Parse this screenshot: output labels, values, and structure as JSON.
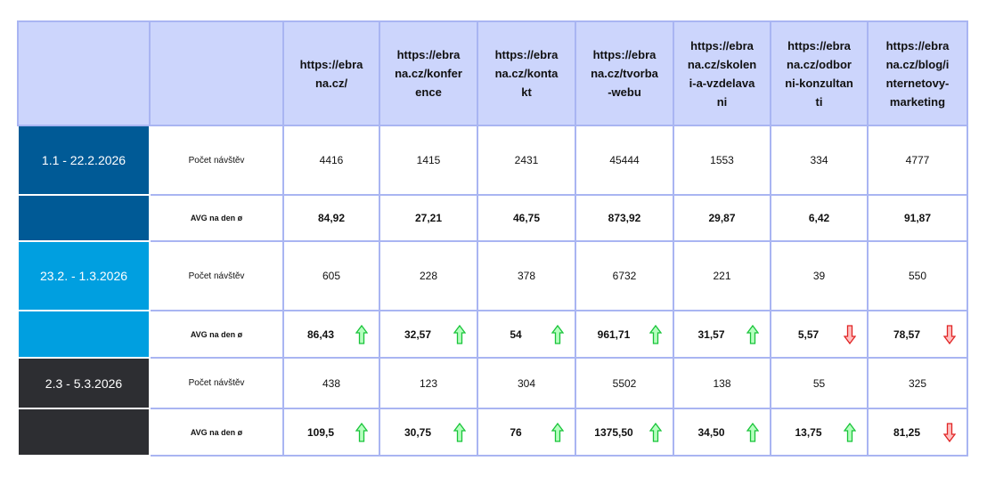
{
  "table": {
    "headers": [
      "",
      "",
      "https://ebrana.cz/",
      "https://ebrana.cz/konference",
      "https://ebrana.cz/kontakt",
      "https://ebrana.cz/tvorba-webu",
      "https://ebrana.cz/skoleni-a-vzdelavani",
      "https://ebrana.cz/odborni-konzultanti",
      "https://ebrana.cz/blog/internetovy-marketing"
    ],
    "periods": [
      {
        "label": "1.1 - 22.2.2026",
        "color": "#005a96",
        "rows": [
          {
            "label": "Počet návštěv",
            "values": [
              "4416",
              "1415",
              "2431",
              "45444",
              "1553",
              "334",
              "4777"
            ]
          },
          {
            "label": "AVG na den ø",
            "values": [
              "84,92",
              "27,21",
              "46,75",
              "873,92",
              "29,87",
              "6,42",
              "91,87"
            ]
          }
        ]
      },
      {
        "label": "23.2. - 1.3.2026",
        "color": "#009fe0",
        "rows": [
          {
            "label": "Počet návštěv",
            "values": [
              "605",
              "228",
              "378",
              "6732",
              "221",
              "39",
              "550"
            ]
          },
          {
            "label": "AVG na den ø",
            "values": [
              "86,43",
              "32,57",
              "54",
              "961,71",
              "31,57",
              "5,57",
              "78,57"
            ],
            "trends": [
              "up",
              "up",
              "up",
              "up",
              "up",
              "down",
              "down"
            ]
          }
        ]
      },
      {
        "label": "2.3 - 5.3.2026",
        "color": "#2d2e32",
        "rows": [
          {
            "label": "Počet návštěv",
            "values": [
              "438",
              "123",
              "304",
              "5502",
              "138",
              "55",
              "325"
            ]
          },
          {
            "label": "AVG na den ø",
            "values": [
              "109,5",
              "30,75",
              "76",
              "1375,50",
              "34,50",
              "13,75",
              "81,25"
            ],
            "trends": [
              "up",
              "up",
              "up",
              "up",
              "up",
              "up",
              "down"
            ]
          }
        ]
      }
    ]
  }
}
